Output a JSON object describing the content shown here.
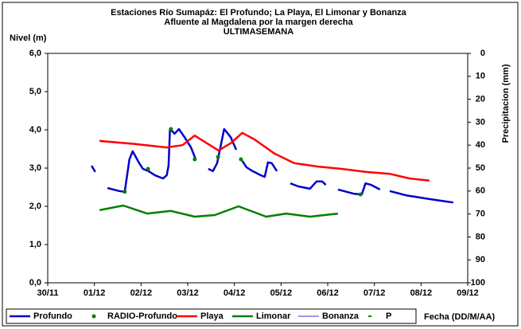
{
  "chart_data": {
    "type": "line",
    "title": [
      "Estaciones Río Sumapáz: El Profundo; La Playa, El Limonar y Bonanza",
      "Afluente al Magdalena por la margen derecha",
      "ULTIMASEMANA"
    ],
    "y_label": "Nivel (m)",
    "y2_label": "Precipitacion (mm)",
    "x_label": "Fecha (DD/M/AA)",
    "xlim": [
      0,
      9
    ],
    "xticks": [
      {
        "value": 0,
        "label": "30/11"
      },
      {
        "value": 1,
        "label": "01/12"
      },
      {
        "value": 2,
        "label": "02/12"
      },
      {
        "value": 3,
        "label": "03/12"
      },
      {
        "value": 4,
        "label": "04/12"
      },
      {
        "value": 5,
        "label": "05/12"
      },
      {
        "value": 6,
        "label": "06/12"
      },
      {
        "value": 7,
        "label": "07/12"
      },
      {
        "value": 8,
        "label": "08/12"
      },
      {
        "value": 9,
        "label": "09/12"
      }
    ],
    "ylim": [
      0,
      6
    ],
    "yticks": [
      {
        "value": 0,
        "label": "0,0"
      },
      {
        "value": 1,
        "label": "1,0"
      },
      {
        "value": 2,
        "label": "2,0"
      },
      {
        "value": 3,
        "label": "3,0"
      },
      {
        "value": 4,
        "label": "4,0"
      },
      {
        "value": 5,
        "label": "5,0"
      },
      {
        "value": 6,
        "label": "6,0"
      }
    ],
    "y2lim": [
      100,
      0
    ],
    "y2ticks": [
      0,
      10,
      20,
      30,
      40,
      50,
      60,
      70,
      80,
      90,
      100
    ],
    "grid": false,
    "legend": "bottom",
    "series": [
      {
        "name": "Profundo",
        "color": "#0000cc",
        "style": "line",
        "x": [
          0.94,
          1.02,
          null,
          1.28,
          1.53,
          1.65,
          1.75,
          1.82,
          1.96,
          2.04,
          2.16,
          2.3,
          2.47,
          2.55,
          2.59,
          2.62,
          2.72,
          2.81,
          2.93,
          3.07,
          3.17,
          null,
          3.44,
          3.54,
          3.63,
          3.78,
          3.92,
          4.04,
          null,
          4.17,
          4.26,
          4.39,
          4.57,
          4.65,
          4.72,
          4.8,
          4.91,
          null,
          5.03,
          null,
          5.2,
          5.37,
          5.62,
          5.76,
          5.88,
          5.96,
          null,
          6.22,
          6.56,
          6.73,
          6.81,
          6.93,
          7.12,
          null,
          7.33,
          7.67,
          8.18,
          8.69
        ],
        "values": [
          3.06,
          2.9,
          null,
          2.48,
          2.4,
          2.38,
          3.23,
          3.44,
          3.13,
          2.98,
          2.92,
          2.81,
          2.73,
          2.81,
          3.06,
          4.02,
          3.9,
          4.02,
          3.81,
          3.54,
          3.23,
          null,
          2.98,
          2.92,
          3.13,
          4.02,
          3.81,
          3.48,
          null,
          3.19,
          3.02,
          2.92,
          2.81,
          2.77,
          3.15,
          3.13,
          2.92,
          null,
          2.77,
          null,
          2.6,
          2.52,
          2.46,
          2.65,
          2.65,
          2.56,
          null,
          2.44,
          2.33,
          2.31,
          2.6,
          2.56,
          2.44,
          null,
          2.4,
          2.29,
          2.19,
          2.1
        ]
      },
      {
        "name": "RADIO-Profundo",
        "color": "#008000",
        "style": "dots",
        "x": [
          1.65,
          2.15,
          2.64,
          3.15,
          3.65,
          4.14,
          6.7
        ],
        "values": [
          2.38,
          2.98,
          4.02,
          3.23,
          3.29,
          3.23,
          2.31
        ]
      },
      {
        "name": "Playa",
        "color": "#ff0000",
        "style": "line",
        "x": [
          1.11,
          1.87,
          2.55,
          2.89,
          3.15,
          3.41,
          3.66,
          3.92,
          4.17,
          4.43,
          4.86,
          5.28,
          5.79,
          6.3,
          6.81,
          7.33,
          7.75,
          8.18
        ],
        "values": [
          3.71,
          3.63,
          3.54,
          3.6,
          3.85,
          3.65,
          3.46,
          3.65,
          3.92,
          3.75,
          3.38,
          3.13,
          3.04,
          2.98,
          2.9,
          2.85,
          2.73,
          2.67
        ]
      },
      {
        "name": "Limonar",
        "color": "#008000",
        "style": "line",
        "x": [
          1.11,
          1.62,
          2.13,
          2.64,
          3.15,
          3.58,
          4.09,
          4.68,
          5.11,
          5.62,
          6.22
        ],
        "values": [
          1.9,
          2.02,
          1.81,
          1.88,
          1.73,
          1.77,
          2.0,
          1.73,
          1.81,
          1.73,
          1.81
        ]
      },
      {
        "name": "Bonanza",
        "color": "#3333cc",
        "style": "thin",
        "x": [],
        "values": []
      },
      {
        "name": "P",
        "color": "#008000",
        "style": "dash",
        "axis": "y2",
        "x": [],
        "values": []
      }
    ]
  }
}
